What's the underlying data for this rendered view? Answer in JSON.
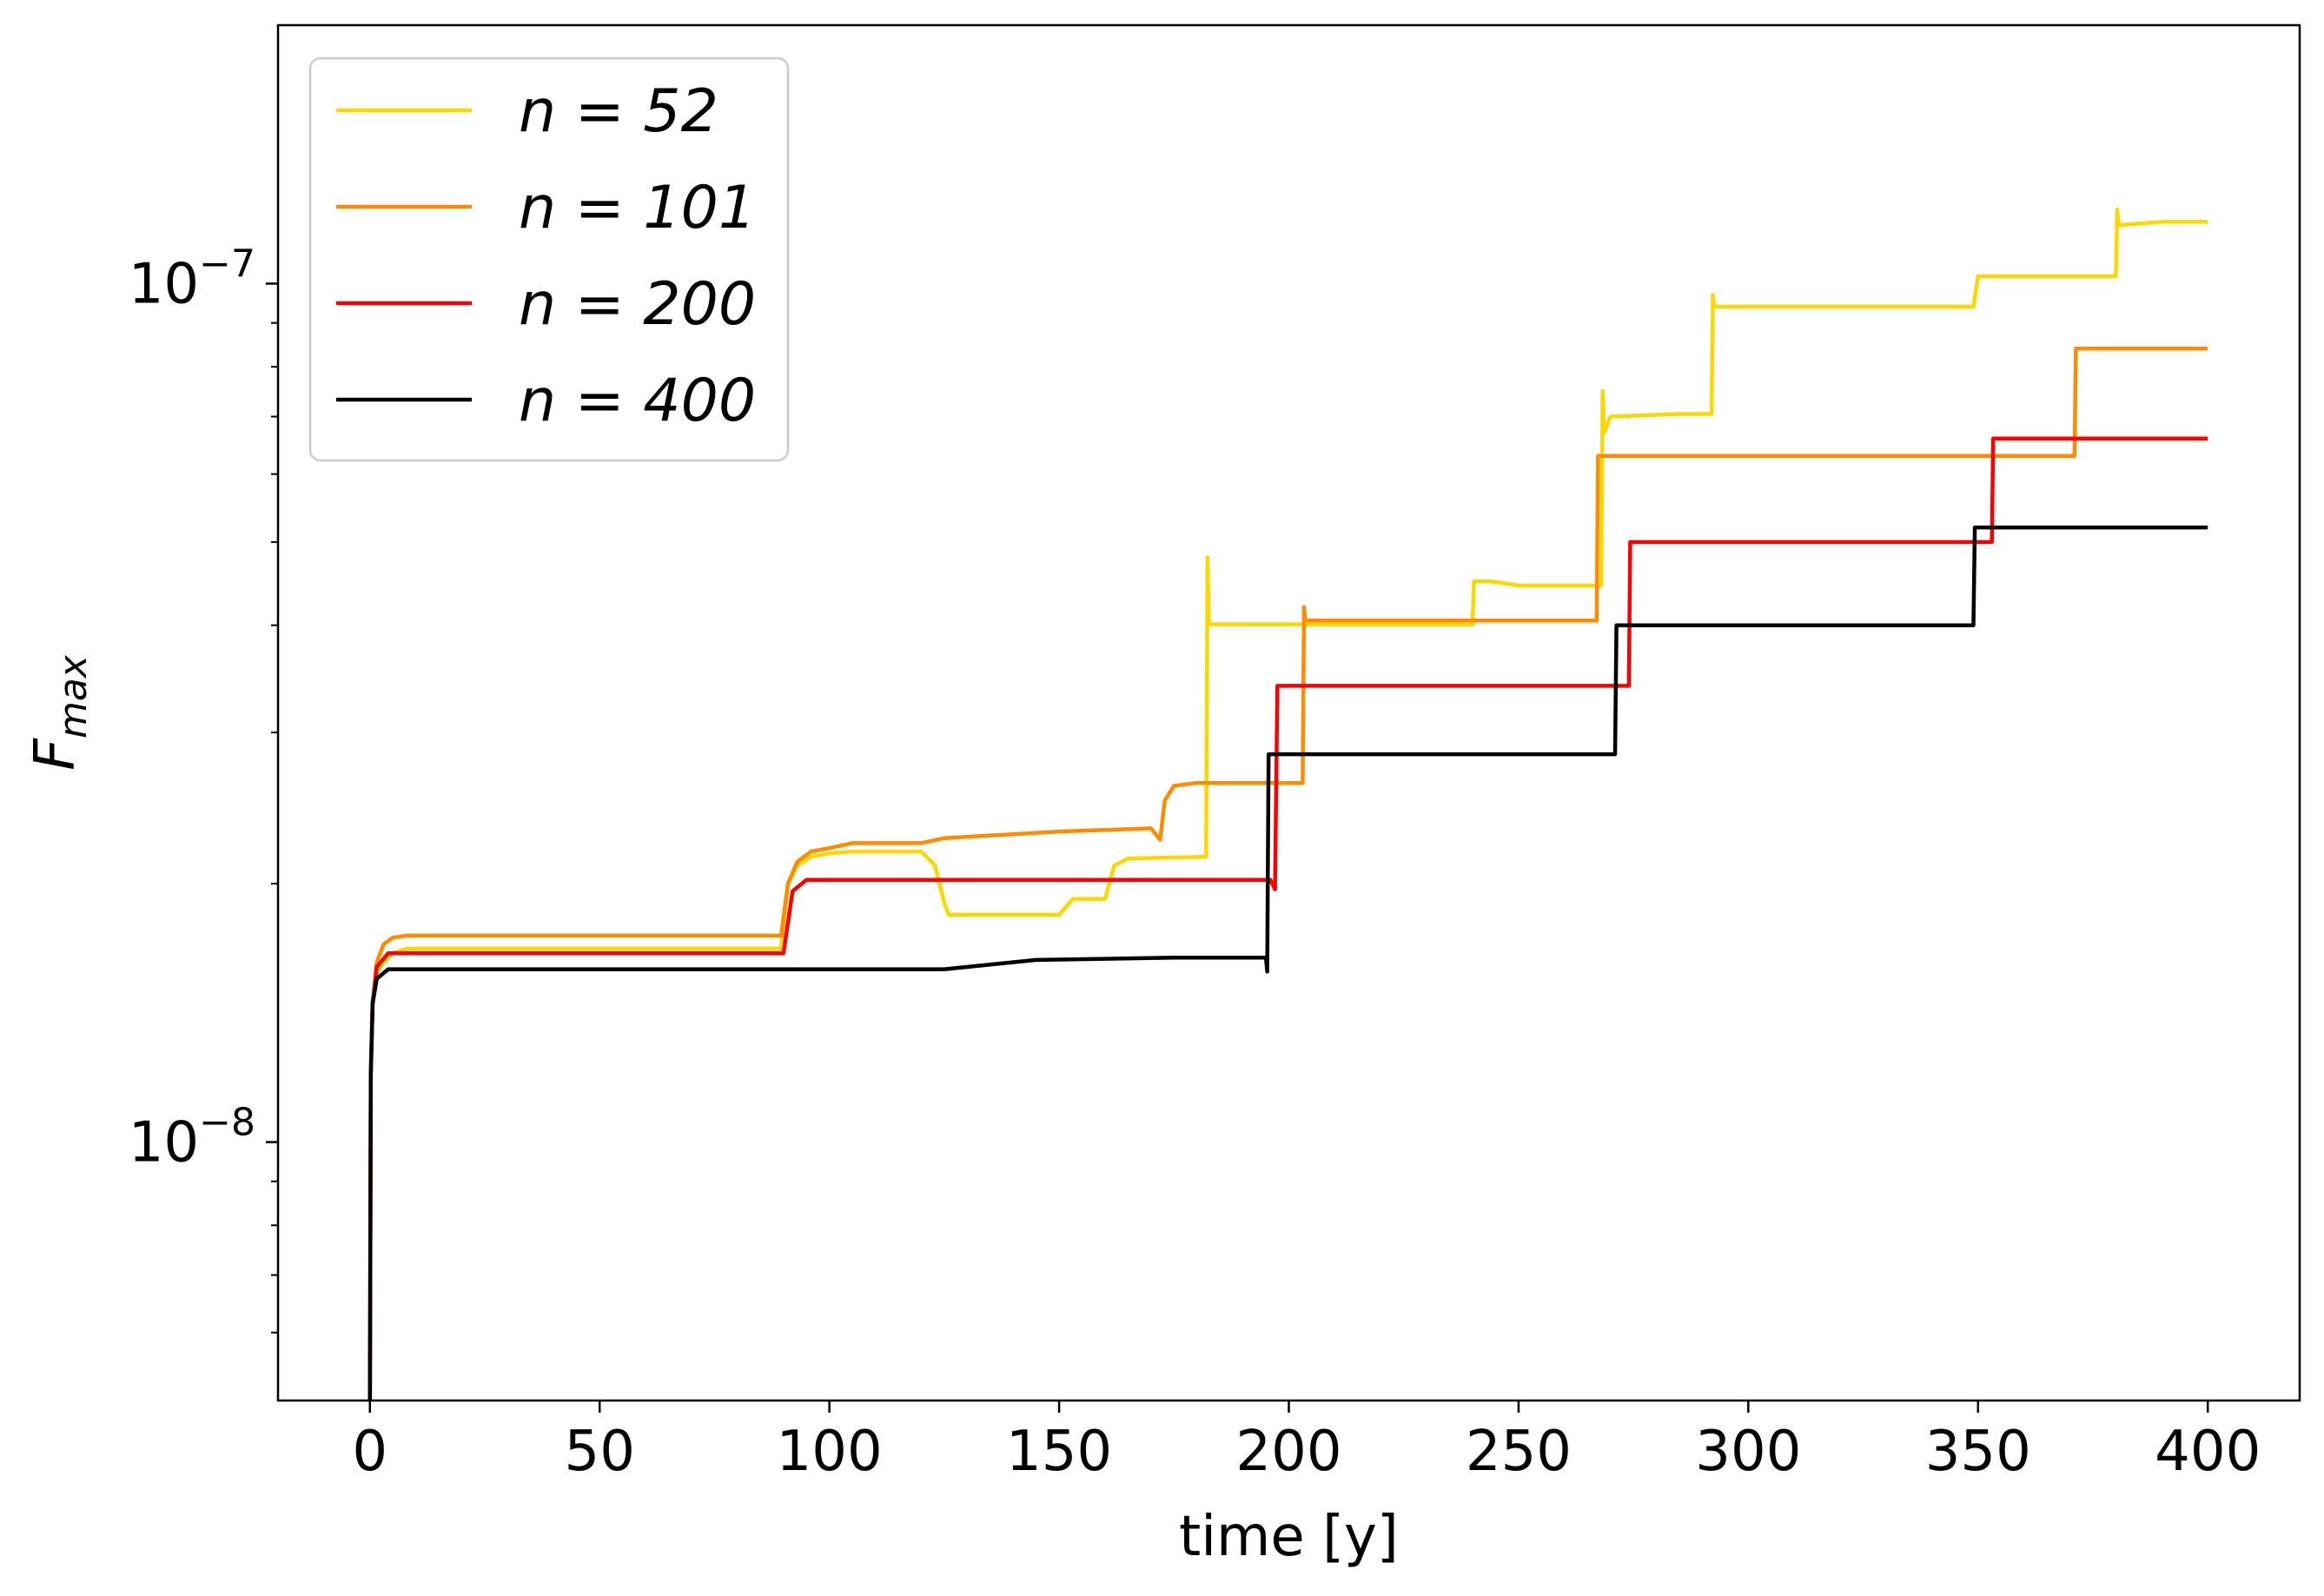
{
  "chart_data": {
    "type": "line",
    "xlabel": "time [y]",
    "ylabel": "F",
    "ylabel_sub": "max",
    "xlim": [
      -20,
      420
    ],
    "ylim": [
      5e-09,
      2e-07
    ],
    "yscale": "log",
    "grid": false,
    "legend_placement": "top-left",
    "x_ticks": [
      0,
      50,
      100,
      150,
      200,
      250,
      300,
      350,
      400
    ],
    "x_tick_labels": [
      "0",
      "50",
      "100",
      "150",
      "200",
      "250",
      "300",
      "350",
      "400"
    ],
    "y_major_ticks": [
      1e-08,
      1e-07
    ],
    "y_major_labels": [
      {
        "base": "10",
        "exp": "−8"
      },
      {
        "base": "10",
        "exp": "−7"
      }
    ],
    "y_minor_ticks": [
      6e-09,
      7e-09,
      8e-09,
      9e-09,
      2e-08,
      3e-08,
      4e-08,
      5e-08,
      6e-08,
      7e-08,
      8e-08,
      9e-08
    ],
    "series": [
      {
        "name": "n = 52",
        "color": "#ffd700",
        "points": [
          [
            0,
            5e-09
          ],
          [
            0.2,
            1.2e-08
          ],
          [
            0.6,
            1.45e-08
          ],
          [
            1.5,
            1.58e-08
          ],
          [
            3,
            1.62e-08
          ],
          [
            5,
            1.66e-08
          ],
          [
            8,
            1.68e-08
          ],
          [
            89.5,
            1.68e-08
          ],
          [
            91,
            2e-08
          ],
          [
            93,
            2.1e-08
          ],
          [
            96,
            2.15e-08
          ],
          [
            100,
            2.17e-08
          ],
          [
            105,
            2.18e-08
          ],
          [
            120,
            2.18e-08
          ],
          [
            123,
            2.1e-08
          ],
          [
            125,
            1.9e-08
          ],
          [
            126,
            1.84e-08
          ],
          [
            150,
            1.84e-08
          ],
          [
            153,
            1.92e-08
          ],
          [
            160,
            1.92e-08
          ],
          [
            162,
            2.1e-08
          ],
          [
            165,
            2.14e-08
          ],
          [
            182,
            2.15e-08
          ],
          [
            182.3,
            4.8e-08
          ],
          [
            182.6,
            4.01e-08
          ],
          [
            240,
            4.01e-08
          ],
          [
            240.3,
            4.5e-08
          ],
          [
            244,
            4.5e-08
          ],
          [
            250,
            4.45e-08
          ],
          [
            268,
            4.45e-08
          ],
          [
            268.3,
            7.5e-08
          ],
          [
            268.6,
            6.7e-08
          ],
          [
            270,
            7e-08
          ],
          [
            285,
            7.05e-08
          ],
          [
            292,
            7.05e-08
          ],
          [
            292.3,
            9.7e-08
          ],
          [
            292.6,
            9.4e-08
          ],
          [
            349,
            9.4e-08
          ],
          [
            350,
            1.02e-07
          ],
          [
            365,
            1.02e-07
          ],
          [
            380,
            1.02e-07
          ],
          [
            380.3,
            1.22e-07
          ],
          [
            380.6,
            1.17e-07
          ],
          [
            390,
            1.18e-07
          ],
          [
            400,
            1.18e-07
          ]
        ]
      },
      {
        "name": "n = 101",
        "color": "#ff8c00",
        "points": [
          [
            0,
            5e-09
          ],
          [
            0.2,
            1.2e-08
          ],
          [
            0.6,
            1.45e-08
          ],
          [
            1.5,
            1.62e-08
          ],
          [
            3,
            1.7e-08
          ],
          [
            5,
            1.73e-08
          ],
          [
            8,
            1.74e-08
          ],
          [
            89.5,
            1.74e-08
          ],
          [
            91,
            2e-08
          ],
          [
            93,
            2.12e-08
          ],
          [
            96,
            2.18e-08
          ],
          [
            100,
            2.2e-08
          ],
          [
            105,
            2.23e-08
          ],
          [
            120,
            2.23e-08
          ],
          [
            125,
            2.26e-08
          ],
          [
            150,
            2.3e-08
          ],
          [
            170,
            2.32e-08
          ],
          [
            172,
            2.25e-08
          ],
          [
            173,
            2.5e-08
          ],
          [
            175,
            2.6e-08
          ],
          [
            180,
            2.62e-08
          ],
          [
            203,
            2.62e-08
          ],
          [
            203.3,
            4.2e-08
          ],
          [
            203.6,
            4.05e-08
          ],
          [
            267,
            4.05e-08
          ],
          [
            267.3,
            6.3e-08
          ],
          [
            371,
            6.3e-08
          ],
          [
            371.3,
            8.4e-08
          ],
          [
            400,
            8.4e-08
          ]
        ]
      },
      {
        "name": "n = 200",
        "color": "#ff0000",
        "points": [
          [
            0,
            5e-09
          ],
          [
            0.2,
            1.2e-08
          ],
          [
            0.6,
            1.45e-08
          ],
          [
            1.5,
            1.6e-08
          ],
          [
            4,
            1.66e-08
          ],
          [
            8,
            1.66e-08
          ],
          [
            90,
            1.66e-08
          ],
          [
            92,
            1.96e-08
          ],
          [
            95,
            2.02e-08
          ],
          [
            100,
            2.02e-08
          ],
          [
            196,
            2.02e-08
          ],
          [
            197,
            1.97e-08
          ],
          [
            197.5,
            3.4e-08
          ],
          [
            274,
            3.4e-08
          ],
          [
            274.3,
            5e-08
          ],
          [
            353,
            5e-08
          ],
          [
            353.3,
            6.6e-08
          ],
          [
            400,
            6.6e-08
          ]
        ]
      },
      {
        "name": "n = 400",
        "color": "#000000",
        "points": [
          [
            0,
            5e-09
          ],
          [
            0.2,
            1.2e-08
          ],
          [
            0.6,
            1.45e-08
          ],
          [
            1.5,
            1.55e-08
          ],
          [
            4,
            1.59e-08
          ],
          [
            8,
            1.59e-08
          ],
          [
            125,
            1.59e-08
          ],
          [
            135,
            1.61e-08
          ],
          [
            145,
            1.63e-08
          ],
          [
            175,
            1.64e-08
          ],
          [
            195,
            1.64e-08
          ],
          [
            195.3,
            1.58e-08
          ],
          [
            195.6,
            2.83e-08
          ],
          [
            271,
            2.83e-08
          ],
          [
            271.3,
            4e-08
          ],
          [
            349,
            4e-08
          ],
          [
            349.3,
            5.2e-08
          ],
          [
            400,
            5.2e-08
          ]
        ]
      }
    ]
  }
}
